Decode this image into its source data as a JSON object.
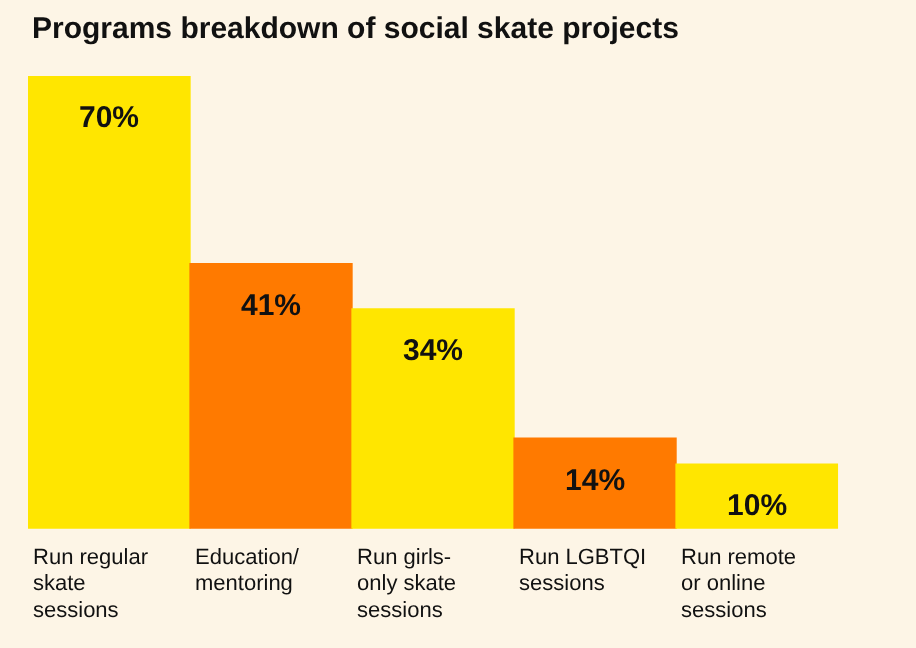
{
  "chart_data": {
    "type": "bar",
    "title": "Programs breakdown of social skate projects",
    "categories": [
      "Run regular skate sessions",
      "Education/ mentoring",
      "Run girls-only skate sessions",
      "Run LGBTQI sessions",
      "Run remote or online sessions"
    ],
    "values": [
      70,
      41,
      34,
      14,
      10
    ],
    "colors": [
      "#ffe600",
      "#ff7a00",
      "#ffe600",
      "#ff7a00",
      "#ffe600"
    ],
    "value_labels": [
      "70%",
      "41%",
      "34%",
      "14%",
      "10%"
    ],
    "grid": false,
    "legend": false
  }
}
